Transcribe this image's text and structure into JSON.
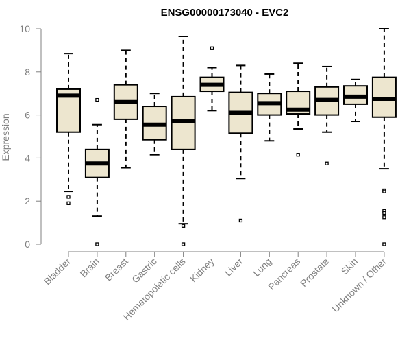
{
  "chart_data": {
    "type": "boxplot",
    "title": "ENSG00000173040 - EVC2",
    "ylabel": "Expression",
    "xlabel": "",
    "ylim": [
      0,
      10
    ],
    "yticks": [
      0,
      2,
      4,
      6,
      8,
      10
    ],
    "grid": false,
    "box_fill": "#ede6cf",
    "median_color": "#000000",
    "axis_color": "#808080",
    "categories": [
      "Bladder",
      "Brain",
      "Breast",
      "Gastric",
      "Hematopoietic cells",
      "Kidney",
      "Liver",
      "Lung",
      "Pancreas",
      "Prostate",
      "Skin",
      "Unknown / Other"
    ],
    "boxes": [
      {
        "category": "Bladder",
        "whisker_low": 2.45,
        "q1": 5.2,
        "median": 6.9,
        "q3": 7.2,
        "whisker_high": 8.85,
        "outliers": [
          2.2,
          1.9
        ]
      },
      {
        "category": "Brain",
        "whisker_low": 1.3,
        "q1": 3.1,
        "median": 3.75,
        "q3": 4.4,
        "whisker_high": 5.55,
        "outliers": [
          6.7,
          0.0
        ]
      },
      {
        "category": "Breast",
        "whisker_low": 3.55,
        "q1": 5.8,
        "median": 6.6,
        "q3": 7.4,
        "whisker_high": 9.0,
        "outliers": []
      },
      {
        "category": "Gastric",
        "whisker_low": 4.15,
        "q1": 4.85,
        "median": 5.55,
        "q3": 6.4,
        "whisker_high": 7.0,
        "outliers": []
      },
      {
        "category": "Hematopoietic cells",
        "whisker_low": 0.95,
        "q1": 4.4,
        "median": 5.7,
        "q3": 6.85,
        "whisker_high": 9.65,
        "outliers": [
          0.85,
          0.0
        ]
      },
      {
        "category": "Kidney",
        "whisker_low": 6.2,
        "q1": 7.1,
        "median": 7.4,
        "q3": 7.75,
        "whisker_high": 8.2,
        "outliers": [
          9.1
        ]
      },
      {
        "category": "Liver",
        "whisker_low": 3.05,
        "q1": 5.15,
        "median": 6.1,
        "q3": 7.05,
        "whisker_high": 8.3,
        "outliers": [
          1.1
        ]
      },
      {
        "category": "Lung",
        "whisker_low": 4.8,
        "q1": 6.0,
        "median": 6.55,
        "q3": 7.0,
        "whisker_high": 7.9,
        "outliers": []
      },
      {
        "category": "Pancreas",
        "whisker_low": 5.35,
        "q1": 6.05,
        "median": 6.25,
        "q3": 7.1,
        "whisker_high": 8.4,
        "outliers": [
          4.15
        ]
      },
      {
        "category": "Prostate",
        "whisker_low": 5.2,
        "q1": 6.0,
        "median": 6.7,
        "q3": 7.3,
        "whisker_high": 8.25,
        "outliers": [
          3.75
        ]
      },
      {
        "category": "Skin",
        "whisker_low": 5.7,
        "q1": 6.5,
        "median": 6.85,
        "q3": 7.35,
        "whisker_high": 7.65,
        "outliers": []
      },
      {
        "category": "Unknown / Other",
        "whisker_low": 3.5,
        "q1": 5.9,
        "median": 6.75,
        "q3": 7.75,
        "whisker_high": 10.0,
        "outliers": [
          2.5,
          2.45,
          1.55,
          1.45,
          1.25,
          0.0
        ]
      }
    ]
  }
}
